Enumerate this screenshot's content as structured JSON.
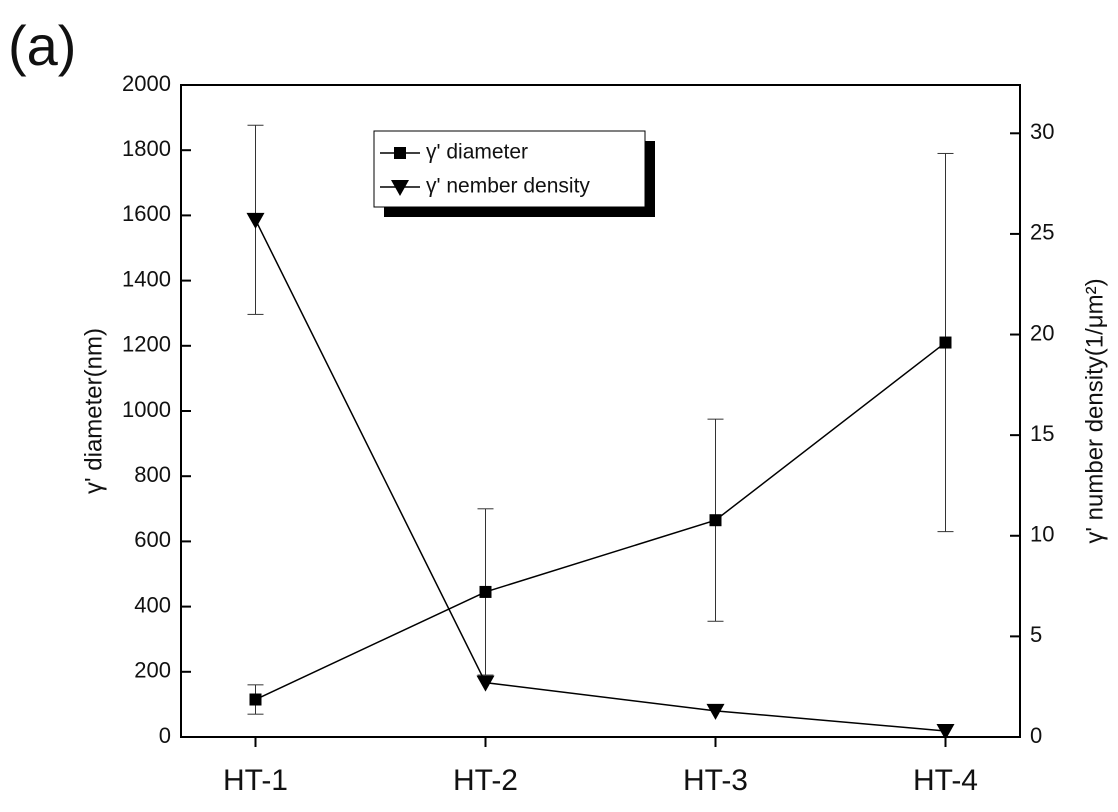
{
  "chart_data": {
    "type": "line",
    "annotation": "(a)",
    "categories": [
      "HT-1",
      "HT-2",
      "HT-3",
      "HT-4"
    ],
    "ylabel": "γ' diameter(nm)",
    "y2label": "γ' number density(1/μm²)",
    "ylim": [
      0,
      2000
    ],
    "yticks": [
      0,
      200,
      400,
      600,
      800,
      1000,
      1200,
      1400,
      1600,
      1800,
      2000
    ],
    "y2lim": [
      0,
      32.4
    ],
    "y2ticks": [
      0,
      5,
      10,
      15,
      20,
      25,
      30
    ],
    "legend": "top-center",
    "series": [
      {
        "name": "γ' diameter",
        "color": "#000000",
        "marker": "square",
        "values": [
          115,
          445,
          665,
          1210
        ],
        "errors": [
          45,
          255,
          310,
          580
        ]
      },
      {
        "name": "γ' nember density",
        "color": "#000000",
        "marker": "triangle-down",
        "axis": "y2",
        "values": [
          25.7,
          2.7,
          1.3,
          0.3
        ],
        "errors": [
          4.7,
          null,
          null,
          null
        ]
      }
    ]
  }
}
